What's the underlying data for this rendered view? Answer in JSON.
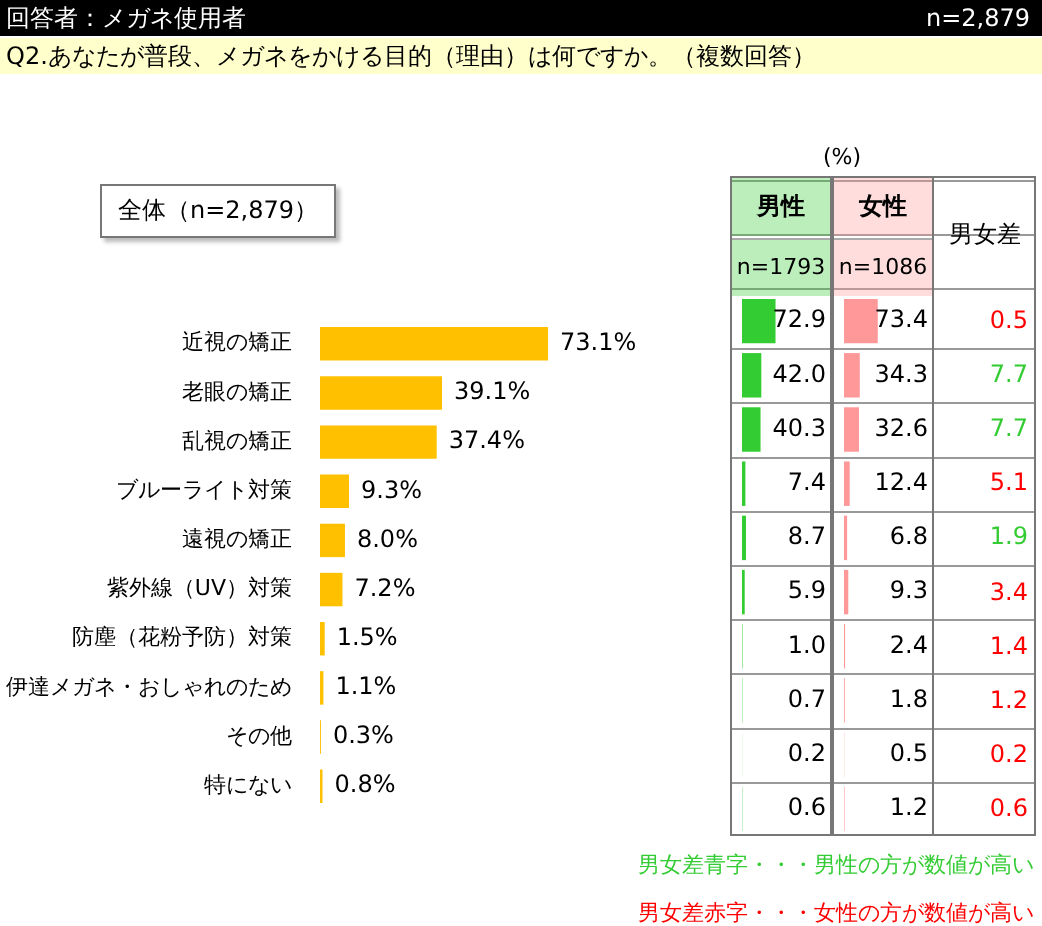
{
  "chart_data": [
    {
      "type": "bar",
      "orientation": "horizontal",
      "title": "回答者：メガネ使用者",
      "subtitle": "Q2.あなたが普段、メガネをかける目的（理由）は何ですか。（複数回答）",
      "annotations": [
        "n=2,879",
        "全体（n=2,879）"
      ],
      "categories": [
        "近視の矯正",
        "老眼の矯正",
        "乱視の矯正",
        "ブルーライト対策",
        "遠視の矯正",
        "紫外線（UV）対策",
        "防塵（花粉予防）対策",
        "伊達メガネ・おしゃれのため",
        "その他",
        "特にない"
      ],
      "values": [
        73.1,
        39.1,
        37.4,
        9.3,
        8.0,
        7.2,
        1.5,
        1.1,
        0.3,
        0.8
      ],
      "color": "#ffc000",
      "value_labels": [
        "73.1%",
        "39.1%",
        "37.4%",
        "9.3%",
        "8.0%",
        "7.2%",
        "1.5%",
        "1.1%",
        "0.3%",
        "0.8%"
      ]
    },
    {
      "type": "bar",
      "orientation": "horizontal",
      "title": "男性",
      "subtitle": "n=1793",
      "xlabel": "(%)",
      "categories": [
        null,
        null,
        null,
        null,
        null,
        null,
        null,
        null,
        null,
        null
      ],
      "values": [
        72.9,
        42.0,
        40.3,
        7.4,
        8.7,
        5.9,
        1.0,
        0.7,
        0.2,
        0.6
      ],
      "color": "#33cc33",
      "value_labels": [
        "72.9",
        "42.0",
        "40.3",
        "7.4",
        "8.7",
        "5.9",
        "1.0",
        "0.7",
        "0.2",
        "0.6"
      ]
    },
    {
      "type": "bar",
      "orientation": "horizontal",
      "title": "女性",
      "subtitle": "n=1086",
      "categories": [
        null,
        null,
        null,
        null,
        null,
        null,
        null,
        null,
        null,
        null
      ],
      "values": [
        73.4,
        34.3,
        32.6,
        12.4,
        6.8,
        9.3,
        2.4,
        1.8,
        0.5,
        1.2
      ],
      "color": "#ff9999",
      "value_labels": [
        "73.4",
        "34.3",
        "32.6",
        "12.4",
        "6.8",
        "9.3",
        "2.4",
        "1.8",
        "0.5",
        "1.2"
      ]
    },
    {
      "type": "other",
      "title": "男女差",
      "values": [
        0.5,
        7.7,
        7.7,
        5.1,
        1.9,
        3.4,
        1.4,
        1.2,
        0.2,
        0.6
      ],
      "colors": [
        "#ff0000",
        "#33cc33",
        "#33cc33",
        "#ff0000",
        "#33cc33",
        "#ff0000",
        "#ff0000",
        "#ff0000",
        "#ff0000",
        "#ff0000"
      ],
      "data_labels": true,
      "annotations": [
        "男女差青字・・・男性の方が数値が高い",
        "男女差赤字・・・女性の方が数値が高い"
      ]
    }
  ]
}
